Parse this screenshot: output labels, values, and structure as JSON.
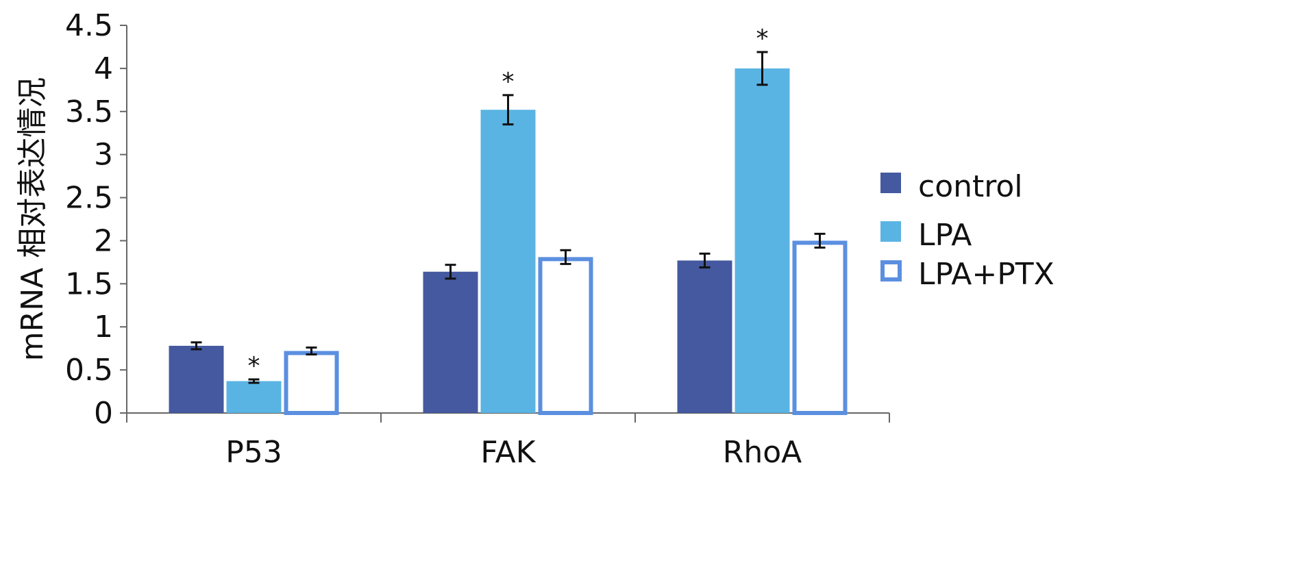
{
  "chart_data": {
    "type": "bar",
    "title": "",
    "xlabel": "",
    "ylabel": "mRNA 相对表达情况",
    "ylim": [
      0,
      4.5
    ],
    "yticks": [
      "0",
      "0.5",
      "1",
      "1.5",
      "2",
      "2.5",
      "3",
      "3.5",
      "4",
      "4.5"
    ],
    "categories": [
      "P53",
      "FAK",
      "RhoA"
    ],
    "legend_position": "right",
    "series": [
      {
        "name": "control",
        "color": "#44599f",
        "fill": "#44599f",
        "values": [
          0.78,
          1.64,
          1.77
        ],
        "errors": [
          0.04,
          0.08,
          0.08
        ],
        "significant": [
          false,
          false,
          false
        ]
      },
      {
        "name": "LPA",
        "color": "#5ab4e3",
        "fill": "#5ab4e3",
        "values": [
          0.37,
          3.52,
          4.0
        ],
        "errors": [
          0.02,
          0.17,
          0.19
        ],
        "significant": [
          true,
          true,
          true
        ]
      },
      {
        "name": "LPA+PTX",
        "color": "#5b8fe0",
        "fill": "#ffffff",
        "values": [
          0.72,
          1.81,
          2.0
        ],
        "errors": [
          0.04,
          0.08,
          0.08
        ],
        "significant": [
          false,
          false,
          false
        ]
      }
    ],
    "significance_mark": "*"
  }
}
